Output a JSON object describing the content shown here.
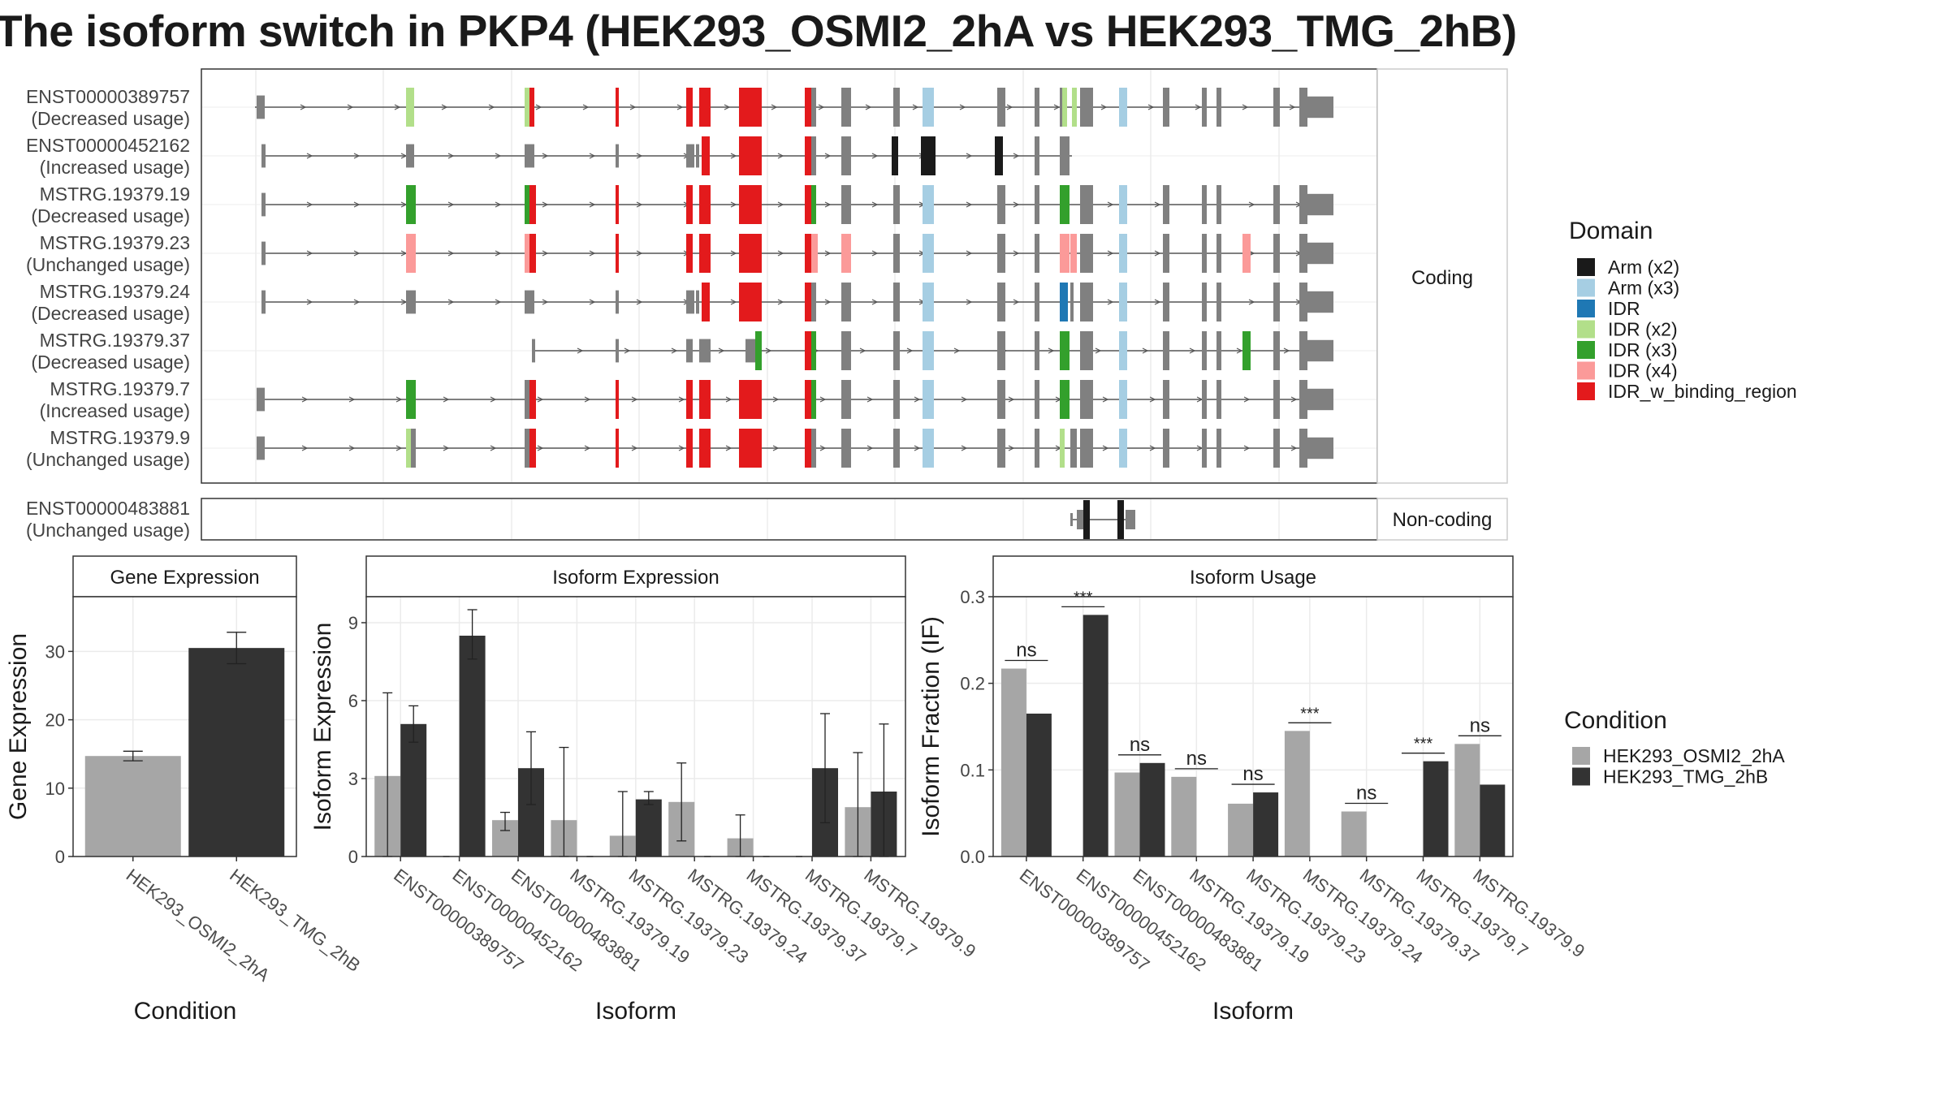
{
  "title": "The isoform switch in PKP4 (HEK293_OSMI2_2hA vs HEK293_TMG_2hB)",
  "colors": {
    "arm_x2": "#1a1a1a",
    "arm_x3": "#a6cee3",
    "idr": "#1f78b4",
    "idr_x2": "#b2df8a",
    "idr_x3": "#33a02c",
    "idr_x4": "#fb9a99",
    "idr_w_binding_region": "#e31a1c",
    "no_domain": "#808080",
    "condition_a": "#a6a6a6",
    "condition_b": "#333333"
  },
  "structure": {
    "coding_strip": "Coding",
    "noncoding_strip": "Non-coding",
    "transcripts": [
      {
        "name": "ENST00000389757",
        "usage": "(Decreased usage)"
      },
      {
        "name": "ENST00000452162",
        "usage": "(Increased usage)"
      },
      {
        "name": "MSTRG.19379.19",
        "usage": "(Decreased usage)"
      },
      {
        "name": "MSTRG.19379.23",
        "usage": "(Unchanged usage)"
      },
      {
        "name": "MSTRG.19379.24",
        "usage": "(Decreased usage)"
      },
      {
        "name": "MSTRG.19379.37",
        "usage": "(Decreased usage)"
      },
      {
        "name": "MSTRG.19379.7",
        "usage": "(Increased usage)"
      },
      {
        "name": "MSTRG.19379.9",
        "usage": "(Unchanged usage)"
      }
    ],
    "noncoding_transcript": {
      "name": "ENST00000483881",
      "usage": "(Unchanged usage)"
    }
  },
  "domain_legend": {
    "title": "Domain",
    "items": [
      {
        "label": "Arm (x2)",
        "color": "#1a1a1a"
      },
      {
        "label": "Arm (x3)",
        "color": "#a6cee3"
      },
      {
        "label": "IDR",
        "color": "#1f78b4"
      },
      {
        "label": "IDR (x2)",
        "color": "#b2df8a"
      },
      {
        "label": "IDR (x3)",
        "color": "#33a02c"
      },
      {
        "label": "IDR (x4)",
        "color": "#fb9a99"
      },
      {
        "label": "IDR_w_binding_region",
        "color": "#e31a1c"
      }
    ]
  },
  "condition_legend": {
    "title": "Condition",
    "items": [
      {
        "label": "HEK293_OSMI2_2hA",
        "color": "#a6a6a6"
      },
      {
        "label": "HEK293_TMG_2hB",
        "color": "#333333"
      }
    ]
  },
  "chart_data": [
    {
      "type": "bar",
      "title": "Gene Expression",
      "xlabel": "Condition",
      "ylabel": "Gene Expression",
      "categories": [
        "HEK293_OSMI2_2hA",
        "HEK293_TMG_2hB"
      ],
      "values": [
        14.7,
        30.5
      ],
      "error": [
        [
          14.0,
          15.4
        ],
        [
          28.2,
          32.8
        ]
      ],
      "ylim": [
        0,
        38
      ],
      "yticks": [
        "0",
        "10",
        "20",
        "30"
      ],
      "grid": true
    },
    {
      "type": "bar",
      "title": "Isoform Expression",
      "xlabel": "Isoform",
      "ylabel": "Isoform Expression",
      "categories": [
        "ENST00000389757",
        "ENST00000452162",
        "ENST00000483881",
        "MSTRG.19379.19",
        "MSTRG.19379.23",
        "MSTRG.19379.24",
        "MSTRG.19379.37",
        "MSTRG.19379.7",
        "MSTRG.19379.9"
      ],
      "series": [
        {
          "name": "HEK293_OSMI2_2hA",
          "values": [
            3.1,
            0,
            1.4,
            1.4,
            0.8,
            2.1,
            0.7,
            0,
            1.9
          ],
          "error": [
            [
              0.0,
              6.3
            ],
            [
              0,
              0
            ],
            [
              1.0,
              1.7
            ],
            [
              0.0,
              4.2
            ],
            [
              0.0,
              2.5
            ],
            [
              0.6,
              3.6
            ],
            [
              0.0,
              1.6
            ],
            [
              0,
              0
            ],
            [
              0.0,
              4.0
            ]
          ]
        },
        {
          "name": "HEK293_TMG_2hB",
          "values": [
            5.1,
            8.5,
            3.4,
            0,
            2.2,
            0,
            0,
            3.4,
            2.5
          ],
          "error": [
            [
              4.4,
              5.8
            ],
            [
              7.6,
              9.5
            ],
            [
              2.0,
              4.8
            ],
            [
              0,
              0
            ],
            [
              2.0,
              2.5
            ],
            [
              0,
              0
            ],
            [
              0,
              0
            ],
            [
              1.3,
              5.5
            ],
            [
              0.0,
              5.1
            ]
          ]
        }
      ],
      "ylim": [
        0,
        10
      ],
      "yticks": [
        "0",
        "3",
        "6",
        "9"
      ],
      "grid": true
    },
    {
      "type": "bar",
      "title": "Isoform Usage",
      "xlabel": "Isoform",
      "ylabel": "Isoform Fraction (IF)",
      "categories": [
        "ENST00000389757",
        "ENST00000452162",
        "ENST00000483881",
        "MSTRG.19379.19",
        "MSTRG.19379.23",
        "MSTRG.19379.24",
        "MSTRG.19379.37",
        "MSTRG.19379.7",
        "MSTRG.19379.9"
      ],
      "series": [
        {
          "name": "HEK293_OSMI2_2hA",
          "values": [
            0.217,
            0,
            0.097,
            0.092,
            0.061,
            0.145,
            0.052,
            0,
            0.13
          ]
        },
        {
          "name": "HEK293_TMG_2hB",
          "values": [
            0.165,
            0.279,
            0.108,
            0,
            0.074,
            0,
            0,
            0.11,
            0.083
          ]
        }
      ],
      "significance": [
        "ns",
        "***",
        "ns",
        "ns",
        "ns",
        "***",
        "ns",
        "***",
        "ns"
      ],
      "ylim": [
        0,
        0.3
      ],
      "yticks": [
        "0.0",
        "0.1",
        "0.2",
        "0.3"
      ],
      "grid": true
    }
  ]
}
